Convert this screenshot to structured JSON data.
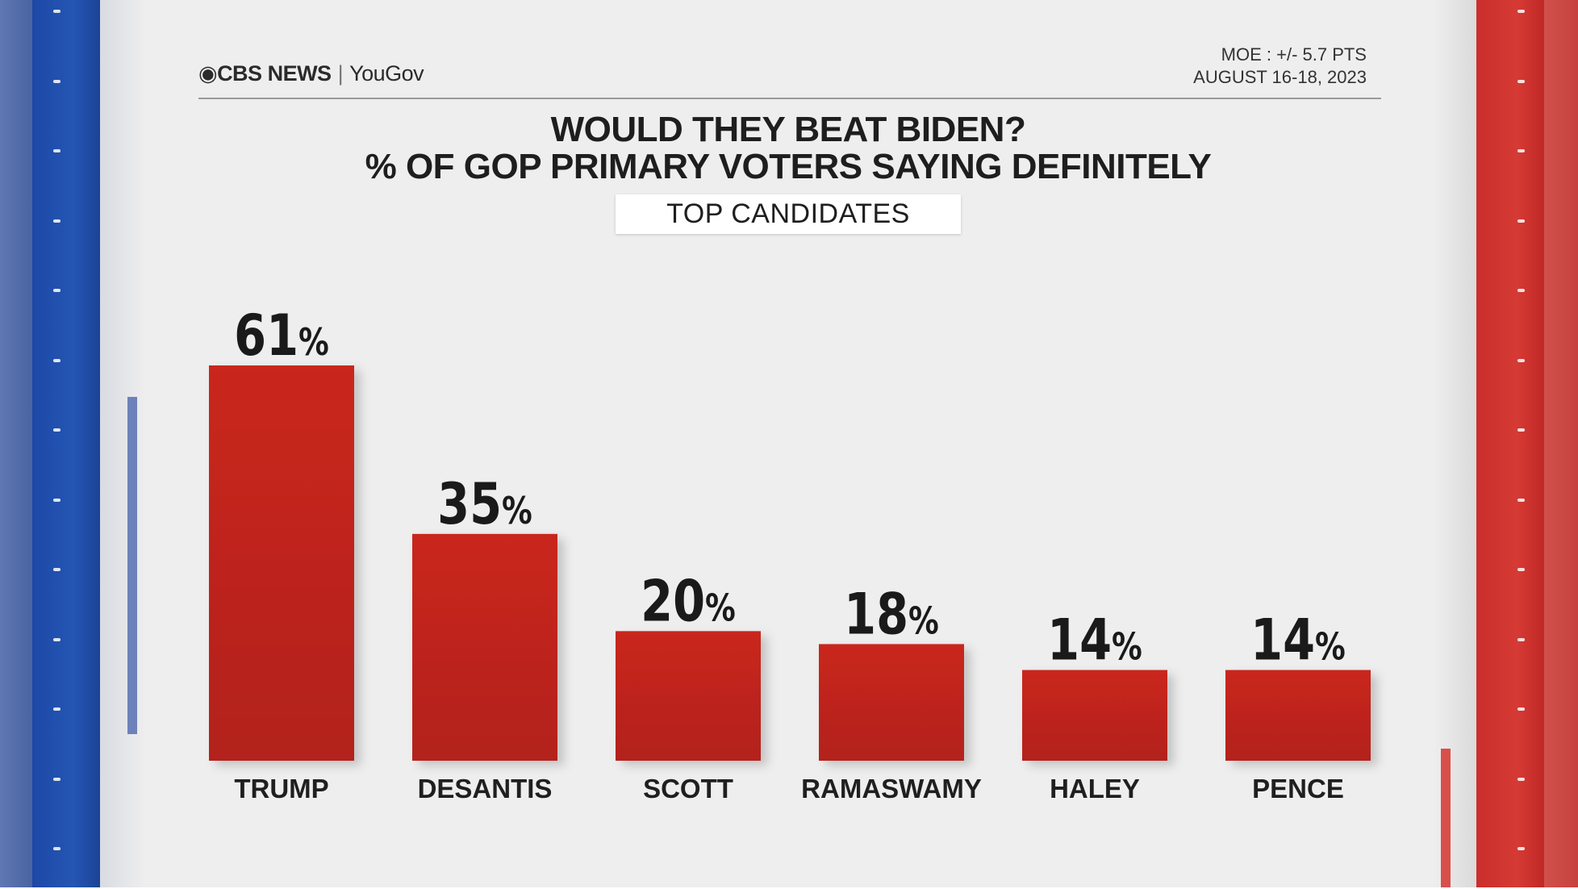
{
  "header": {
    "brand_primary": "CBS NEWS",
    "brand_secondary": "YouGov",
    "moe": "MOE : +/- 5.7 PTS",
    "dates": "AUGUST 16-18, 2023"
  },
  "colors": {
    "bar": "#c9261d",
    "bar_dark": "#b3221a"
  },
  "chart_data": {
    "type": "bar",
    "title": "WOULD THEY BEAT BIDEN?",
    "subtitle": "% OF GOP PRIMARY VOTERS SAYING DEFINITELY",
    "tag": "TOP CANDIDATES",
    "categories": [
      "TRUMP",
      "DESANTIS",
      "SCOTT",
      "RAMASWAMY",
      "HALEY",
      "PENCE"
    ],
    "values": [
      61,
      35,
      20,
      18,
      14,
      14
    ],
    "value_suffix": "%",
    "ylim": [
      0,
      61
    ],
    "grid": false
  }
}
